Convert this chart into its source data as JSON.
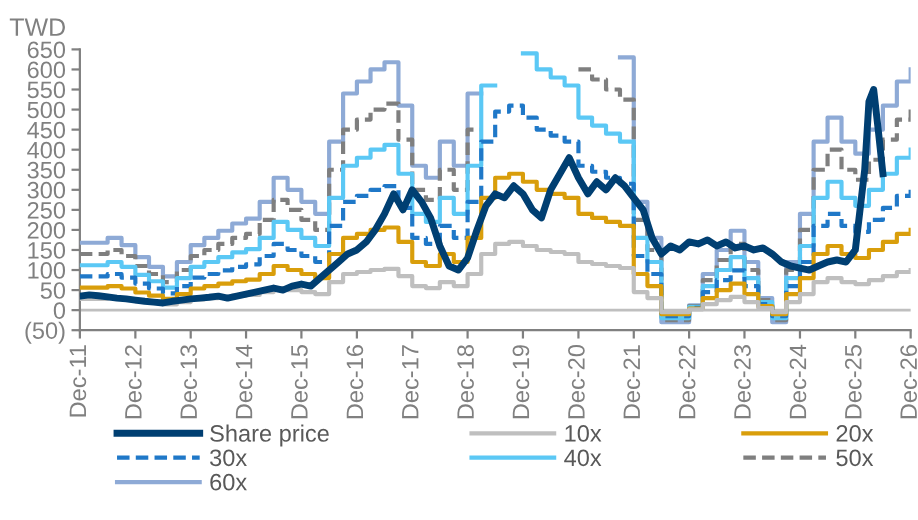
{
  "chart_data": {
    "type": "step",
    "ylabel": "TWD",
    "x": [
      "2011-12",
      "2012-03",
      "2012-06",
      "2012-09",
      "2012-12",
      "2013-03",
      "2013-06",
      "2013-09",
      "2013-12",
      "2014-03",
      "2014-06",
      "2014-09",
      "2014-12",
      "2015-03",
      "2015-06",
      "2015-09",
      "2015-12",
      "2016-03",
      "2016-06",
      "2016-09",
      "2016-12",
      "2017-03",
      "2017-06",
      "2017-09",
      "2017-12",
      "2018-03",
      "2018-06",
      "2018-09",
      "2018-12",
      "2019-03",
      "2019-06",
      "2019-09",
      "2019-12",
      "2020-03",
      "2020-06",
      "2020-09",
      "2020-12",
      "2021-03",
      "2021-06",
      "2021-09",
      "2021-12",
      "2022-03",
      "2022-06",
      "2022-09",
      "2022-12",
      "2023-03",
      "2023-06",
      "2023-09",
      "2023-12",
      "2024-03",
      "2024-06",
      "2024-09",
      "2024-12",
      "2025-03",
      "2025-06",
      "2025-09",
      "2025-12",
      "2026-03",
      "2026-06",
      "2026-09",
      "2026-12"
    ],
    "series": [
      {
        "name": "Share price",
        "type": "line",
        "color": "#003f72",
        "line_style": "solid",
        "x": [
          "2011-12",
          "2012-02",
          "2012-04",
          "2012-06",
          "2012-08",
          "2012-10",
          "2012-12",
          "2013-02",
          "2013-04",
          "2013-06",
          "2013-08",
          "2013-10",
          "2013-12",
          "2014-02",
          "2014-04",
          "2014-06",
          "2014-08",
          "2014-10",
          "2014-12",
          "2015-02",
          "2015-04",
          "2015-06",
          "2015-08",
          "2015-10",
          "2015-12",
          "2016-02",
          "2016-04",
          "2016-06",
          "2016-08",
          "2016-10",
          "2016-12",
          "2017-02",
          "2017-04",
          "2017-06",
          "2017-08",
          "2017-10",
          "2017-12",
          "2018-02",
          "2018-04",
          "2018-06",
          "2018-08",
          "2018-10",
          "2018-12",
          "2019-02",
          "2019-04",
          "2019-06",
          "2019-08",
          "2019-10",
          "2019-12",
          "2020-02",
          "2020-04",
          "2020-06",
          "2020-08",
          "2020-10",
          "2020-12",
          "2021-02",
          "2021-04",
          "2021-06",
          "2021-08",
          "2021-10",
          "2021-12",
          "2022-02",
          "2022-04",
          "2022-06",
          "2022-08",
          "2022-10",
          "2022-12",
          "2023-02",
          "2023-04",
          "2023-06",
          "2023-08",
          "2023-10",
          "2023-12",
          "2024-02",
          "2024-04",
          "2024-06",
          "2024-08",
          "2024-10",
          "2024-12",
          "2025-02",
          "2025-04",
          "2025-06",
          "2025-08",
          "2025-10",
          "2025-12",
          "2026-02",
          "2026-03",
          "2026-04",
          "2026-05",
          "2026-06"
        ],
        "values": [
          35,
          38,
          36,
          33,
          30,
          28,
          25,
          22,
          20,
          18,
          22,
          25,
          28,
          30,
          32,
          35,
          30,
          35,
          40,
          45,
          50,
          55,
          50,
          60,
          65,
          60,
          80,
          100,
          120,
          140,
          150,
          170,
          200,
          240,
          290,
          250,
          300,
          270,
          230,
          160,
          110,
          100,
          130,
          200,
          260,
          290,
          280,
          310,
          290,
          250,
          230,
          300,
          340,
          380,
          330,
          290,
          320,
          300,
          330,
          310,
          280,
          250,
          180,
          140,
          160,
          150,
          170,
          165,
          175,
          160,
          170,
          155,
          160,
          150,
          155,
          140,
          120,
          110,
          105,
          100,
          110,
          120,
          125,
          120,
          150,
          350,
          520,
          550,
          450,
          340
        ]
      },
      {
        "name": "10x",
        "color": "#bfbfbf",
        "line_style": "solid",
        "values": [
          28,
          28,
          30,
          27,
          22,
          18,
          14,
          20,
          27,
          30,
          33,
          36,
          38,
          45,
          55,
          50,
          45,
          40,
          70,
          90,
          95,
          100,
          103,
          85,
          60,
          55,
          70,
          60,
          90,
          140,
          165,
          170,
          160,
          150,
          145,
          140,
          120,
          115,
          110,
          105,
          45,
          30,
          -5,
          -5,
          2,
          15,
          25,
          33,
          20,
          5,
          -5,
          20,
          40,
          70,
          80,
          70,
          65,
          75,
          85,
          95,
          100
        ]
      },
      {
        "name": "20x",
        "color": "#d99e0b",
        "line_style": "solid",
        "values": [
          56,
          56,
          60,
          54,
          44,
          36,
          28,
          40,
          54,
          60,
          66,
          72,
          76,
          90,
          110,
          100,
          90,
          80,
          140,
          180,
          190,
          200,
          206,
          170,
          120,
          110,
          140,
          120,
          180,
          280,
          330,
          340,
          320,
          300,
          290,
          280,
          240,
          230,
          220,
          210,
          90,
          60,
          -10,
          -10,
          4,
          30,
          50,
          66,
          40,
          10,
          -10,
          40,
          80,
          140,
          160,
          140,
          130,
          150,
          170,
          190,
          200
        ]
      },
      {
        "name": "30x",
        "color": "#1f78c8",
        "line_style": "dashed",
        "values": [
          84,
          84,
          90,
          81,
          66,
          54,
          42,
          60,
          81,
          90,
          99,
          108,
          114,
          135,
          165,
          150,
          135,
          120,
          210,
          270,
          285,
          300,
          309,
          255,
          180,
          165,
          210,
          180,
          270,
          420,
          495,
          510,
          480,
          450,
          435,
          420,
          360,
          345,
          330,
          315,
          135,
          90,
          -15,
          -15,
          6,
          45,
          75,
          99,
          60,
          15,
          -15,
          60,
          120,
          210,
          240,
          210,
          195,
          225,
          255,
          285,
          300
        ]
      },
      {
        "name": "40x",
        "color": "#5bc8f5",
        "line_style": "solid",
        "values": [
          112,
          112,
          120,
          108,
          88,
          72,
          56,
          80,
          108,
          120,
          132,
          144,
          152,
          180,
          220,
          200,
          180,
          160,
          280,
          360,
          380,
          400,
          412,
          340,
          240,
          220,
          280,
          240,
          360,
          560,
          null,
          null,
          640,
          600,
          580,
          560,
          480,
          460,
          440,
          420,
          180,
          120,
          -20,
          -20,
          8,
          60,
          100,
          132,
          80,
          20,
          -20,
          80,
          160,
          280,
          320,
          280,
          260,
          300,
          340,
          380,
          400
        ]
      },
      {
        "name": "50x",
        "color": "#7f7f7f",
        "line_style": "dashed",
        "values": [
          140,
          140,
          150,
          135,
          110,
          90,
          70,
          100,
          135,
          150,
          165,
          180,
          190,
          225,
          275,
          250,
          225,
          200,
          350,
          450,
          475,
          500,
          515,
          425,
          300,
          275,
          350,
          300,
          450,
          null,
          null,
          null,
          null,
          null,
          null,
          null,
          600,
          575,
          550,
          525,
          225,
          150,
          -25,
          -25,
          10,
          75,
          125,
          165,
          100,
          25,
          -25,
          100,
          200,
          350,
          400,
          350,
          325,
          375,
          425,
          475,
          500
        ]
      },
      {
        "name": "60x",
        "color": "#8eaad6",
        "line_style": "solid",
        "values": [
          168,
          168,
          180,
          162,
          132,
          108,
          84,
          120,
          162,
          180,
          198,
          216,
          228,
          270,
          330,
          300,
          270,
          240,
          420,
          540,
          570,
          600,
          618,
          510,
          360,
          330,
          420,
          360,
          540,
          null,
          null,
          null,
          null,
          null,
          null,
          null,
          null,
          null,
          null,
          630,
          270,
          180,
          -30,
          -30,
          12,
          90,
          150,
          198,
          120,
          30,
          -30,
          120,
          240,
          420,
          480,
          420,
          390,
          450,
          510,
          570,
          600
        ]
      }
    ],
    "xticks": [
      {
        "value": "2011-12",
        "label": "Dec-11"
      },
      {
        "value": "2012-12",
        "label": "Dec-12"
      },
      {
        "value": "2013-12",
        "label": "Dec-13"
      },
      {
        "value": "2014-12",
        "label": "Dec-14"
      },
      {
        "value": "2015-12",
        "label": "Dec-15"
      },
      {
        "value": "2016-12",
        "label": "Dec-16"
      },
      {
        "value": "2017-12",
        "label": "Dec-17"
      },
      {
        "value": "2018-12",
        "label": "Dec-18"
      },
      {
        "value": "2019-12",
        "label": "Dec-19"
      },
      {
        "value": "2020-12",
        "label": "Dec-20"
      },
      {
        "value": "2021-12",
        "label": "Dec-21"
      },
      {
        "value": "2022-12",
        "label": "Dec-22"
      },
      {
        "value": "2023-12",
        "label": "Dec-23"
      },
      {
        "value": "2024-12",
        "label": "Dec-24"
      },
      {
        "value": "2025-12",
        "label": "Dec-25"
      },
      {
        "value": "2026-12",
        "label": "Dec-26"
      }
    ],
    "xlim": [
      "2011-12",
      "2026-12"
    ],
    "ylim": [
      -50,
      650
    ],
    "yticks": [
      {
        "value": -50,
        "label": "(50)"
      },
      0,
      50,
      100,
      150,
      200,
      250,
      300,
      350,
      400,
      450,
      500,
      550,
      600,
      650
    ],
    "ref_lines": [
      {
        "axis": "y",
        "value": 0,
        "color": "#bfbfbf"
      }
    ],
    "grid": false,
    "legend": "bottom"
  }
}
